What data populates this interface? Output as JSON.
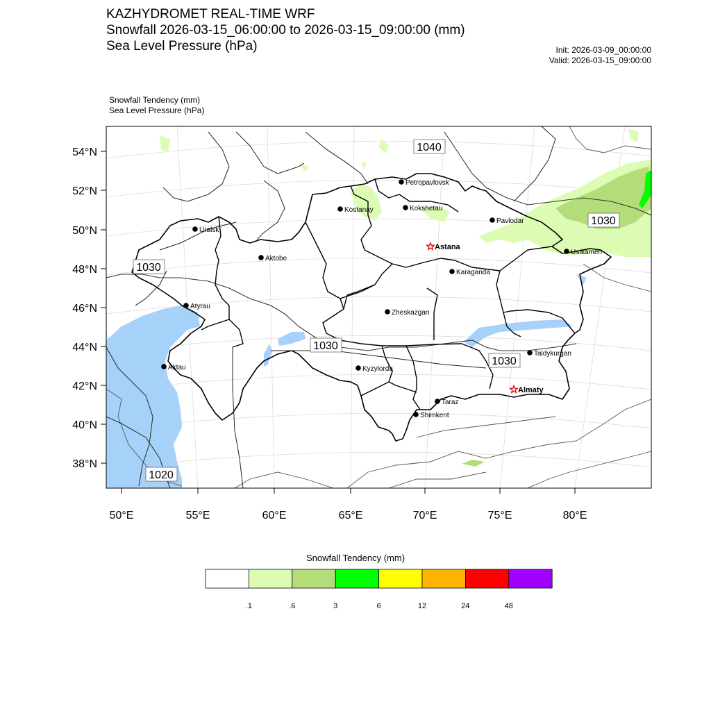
{
  "header": {
    "title_line1": "KAZHYDROMET REAL-TIME WRF",
    "title_line2": "Snowfall 2026-03-15_06:00:00 to 2026-03-15_09:00:00 (mm)",
    "title_line3": "Sea Level Pressure  (hPa)",
    "init": "Init: 2026-03-09_00:00:00",
    "valid": "Valid: 2026-03-15_09:00:00",
    "subtitle1": "Snowfall Tendency   (mm)",
    "subtitle2": "Sea Level Pressure   (hPa)"
  },
  "map": {
    "lat_labels": [
      "54°N",
      "52°N",
      "50°N",
      "48°N",
      "46°N",
      "44°N",
      "42°N",
      "40°N",
      "38°N"
    ],
    "lon_labels": [
      "50°E",
      "55°E",
      "60°E",
      "65°E",
      "70°E",
      "75°E",
      "80°E"
    ],
    "cities": [
      {
        "name": "Petropavlovsk",
        "lon": 69.2,
        "lat": 54.9,
        "capital": false
      },
      {
        "name": "Kostanay",
        "lon": 63.6,
        "lat": 53.2,
        "capital": false
      },
      {
        "name": "Kokshetau",
        "lon": 69.4,
        "lat": 53.3,
        "capital": false
      },
      {
        "name": "Pavlodar",
        "lon": 76.9,
        "lat": 52.3,
        "capital": false
      },
      {
        "name": "Uralsk",
        "lon": 51.4,
        "lat": 51.2,
        "capital": false
      },
      {
        "name": "Astana",
        "lon": 71.4,
        "lat": 51.2,
        "capital": true
      },
      {
        "name": "Ustkamen",
        "lon": 82.6,
        "lat": 50.0,
        "capital": false
      },
      {
        "name": "Aktobe",
        "lon": 57.2,
        "lat": 50.3,
        "capital": false
      },
      {
        "name": "Karaganda",
        "lon": 73.1,
        "lat": 49.8,
        "capital": false
      },
      {
        "name": "Atyrau",
        "lon": 51.9,
        "lat": 47.1,
        "capital": false
      },
      {
        "name": "Zheskazgan",
        "lon": 67.7,
        "lat": 47.8,
        "capital": false
      },
      {
        "name": "Taldykurgan",
        "lon": 78.4,
        "lat": 45.0,
        "capital": false
      },
      {
        "name": "Aktau",
        "lon": 51.2,
        "lat": 43.7,
        "capital": false
      },
      {
        "name": "Kyzylorda",
        "lon": 65.5,
        "lat": 44.8,
        "capital": false
      },
      {
        "name": "Almaty",
        "lon": 76.9,
        "lat": 43.2,
        "capital": true
      },
      {
        "name": "Taraz",
        "lon": 71.4,
        "lat": 42.9,
        "capital": false
      },
      {
        "name": "Shimkent",
        "lon": 69.6,
        "lat": 42.3,
        "capital": false
      }
    ],
    "pressure_labels": [
      "1040",
      "1030",
      "1030",
      "1030",
      "1030",
      "1020"
    ]
  },
  "colorbar": {
    "title": "Snowfall Tendency (mm)",
    "colors": [
      "#ffffff",
      "#dcfcb4",
      "#b4dc78",
      "#00ff00",
      "#ffff00",
      "#ffb400",
      "#ff0000",
      "#a000ff"
    ],
    "labels": [
      ".1",
      ".6",
      "3",
      "6",
      "12",
      "24",
      "48"
    ]
  }
}
